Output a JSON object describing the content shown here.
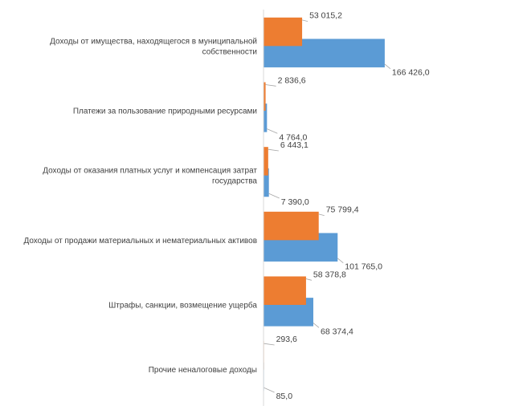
{
  "chart_data": {
    "type": "bar",
    "orientation": "horizontal",
    "categories": [
      [
        "Доходы от имущества, находящегося в муниципальной",
        "собственности"
      ],
      [
        "Платежи за пользование природными ресурсами"
      ],
      [
        "Доходы от оказания платных услуг и компенсация затрат",
        "государства"
      ],
      [
        "Доходы от продажи материальных и нематериальных активов"
      ],
      [
        "Штрафы, санкции, возмещение ущерба"
      ],
      [
        "Прочие неналоговые доходы"
      ]
    ],
    "series": [
      {
        "color": "#5b9bd5",
        "values": [
          166426.0,
          4764.0,
          7390.0,
          101765.0,
          68374.4,
          85.0
        ],
        "labels": [
          "166 426,0",
          "4 764,0",
          "7 390,0",
          "101 765,0",
          "68 374,4",
          "85,0"
        ]
      },
      {
        "color": "#ed7d31",
        "values": [
          53015.2,
          2836.6,
          6443.1,
          75799.4,
          58378.8,
          293.6
        ],
        "labels": [
          "53 015,2",
          "2 836,6",
          "6 443,1",
          "75 799,4",
          "58 378,8",
          "293,6"
        ]
      }
    ],
    "xlim": [
      0,
      300000
    ],
    "grid": false,
    "legend": "none",
    "data_labels": true,
    "leader_lines": true
  }
}
